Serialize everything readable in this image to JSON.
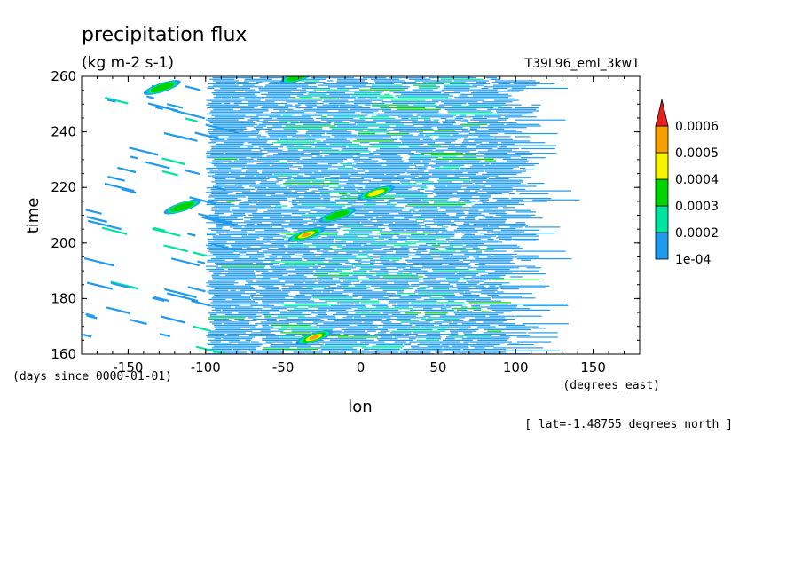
{
  "chart_data": {
    "type": "heatmap",
    "title": "precipitation flux",
    "units": "(kg m-2 s-1)",
    "dataset": "T39L96_eml_3kw1",
    "xlabel": "lon",
    "ylabel": "time",
    "x_units": "(degrees_east)",
    "y_units": "(days since 0000-01-01)",
    "subtitle": "[ lat=-1.48755 degrees_north ]",
    "xlim": [
      -180,
      180
    ],
    "ylim": [
      160,
      260
    ],
    "x_ticks": [
      -150,
      -100,
      -50,
      0,
      50,
      100,
      150
    ],
    "x_tick_labels": [
      "-150",
      "-100",
      "-50",
      "0",
      "50",
      "100",
      "150"
    ],
    "y_ticks": [
      160,
      180,
      200,
      220,
      240,
      260
    ],
    "y_tick_labels": [
      "160",
      "180",
      "200",
      "220",
      "240",
      "260"
    ],
    "colorbar": {
      "levels": [
        "1e-04",
        "0.0002",
        "0.0003",
        "0.0004",
        "0.0005",
        "0.0006"
      ],
      "colors": [
        "#ffffff",
        "#1e9bf0",
        "#00e4a0",
        "#00d400",
        "#f5f500",
        "#f5a000",
        "#e61e1e"
      ],
      "extend": "max"
    },
    "features": [
      {
        "lon": -35,
        "time": 203,
        "level": 5,
        "note": "max"
      },
      {
        "lon": -30,
        "time": 166,
        "level": 5
      },
      {
        "lon": 10,
        "time": 218,
        "level": 4
      },
      {
        "lon": -15,
        "time": 210,
        "level": 3
      },
      {
        "lon": -128,
        "time": 256,
        "level": 3
      },
      {
        "lon": -115,
        "time": 213,
        "level": 3
      },
      {
        "lon": -40,
        "time": 260,
        "level": 3
      }
    ]
  }
}
